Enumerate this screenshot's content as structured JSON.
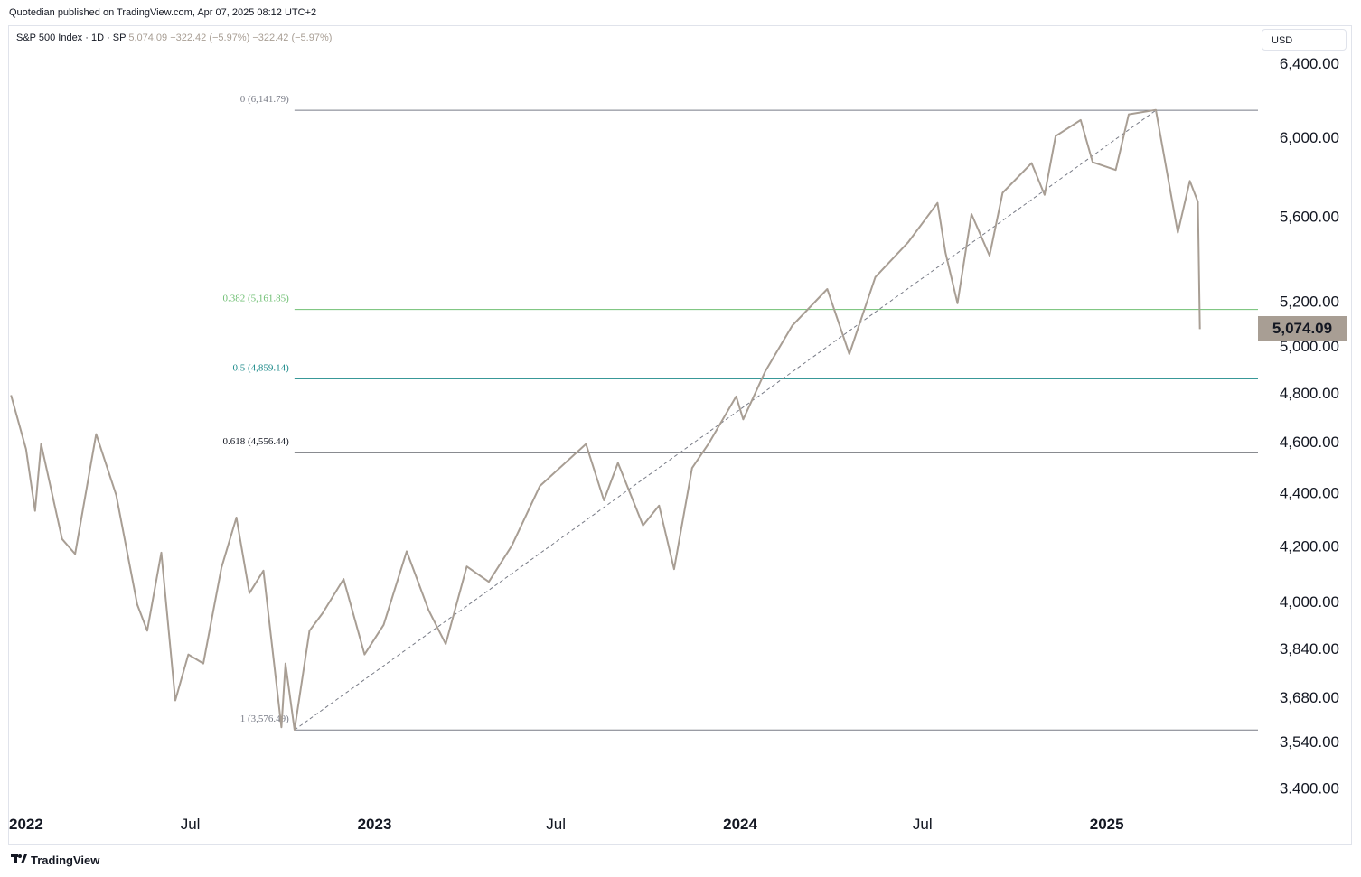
{
  "publisher_line": "Quotedian published on TradingView.com, Apr 07, 2025 08:12 UTC+2",
  "legend": {
    "symbol": "S&P 500 Index · 1D · SP",
    "values": "5,074.09 −322.42 (−5.97%) −322.42 (−5.97%)"
  },
  "currency_button": "USD",
  "last_price_label": "5,074.09",
  "brand": "TradingView",
  "colors": {
    "price_line": "#a89e94",
    "fib_0382": "#6fbf73",
    "fib_05": "#1c8a8a",
    "fib_0618": "#131722",
    "fib_edge": "#787b86"
  },
  "chart_data": {
    "type": "line",
    "title": "S&P 500 Index · 1D · SP",
    "scale": "log",
    "ylim": [
      3340,
      6450
    ],
    "x_range": [
      "2022-01-01",
      "2025-06-01"
    ],
    "y_ticks": [
      {
        "value": 6400,
        "label": "6,400.00"
      },
      {
        "value": 6000,
        "label": "6,000.00"
      },
      {
        "value": 5600,
        "label": "5,600.00"
      },
      {
        "value": 5200,
        "label": "5,200.00"
      },
      {
        "value": 5000,
        "label": "5,000.00"
      },
      {
        "value": 4800,
        "label": "4,800.00"
      },
      {
        "value": 4600,
        "label": "4,600.00"
      },
      {
        "value": 4400,
        "label": "4,400.00"
      },
      {
        "value": 4200,
        "label": "4,200.00"
      },
      {
        "value": 4000,
        "label": "4,000.00"
      },
      {
        "value": 3840,
        "label": "3,840.00"
      },
      {
        "value": 3680,
        "label": "3,680.00"
      },
      {
        "value": 3540,
        "label": "3,540.00"
      },
      {
        "value": 3400,
        "label": "3.400.00"
      }
    ],
    "x_ticks": [
      {
        "date": "2022-01-01",
        "label": "2022",
        "bold": true
      },
      {
        "date": "2022-07-01",
        "label": "Jul",
        "bold": false
      },
      {
        "date": "2023-01-01",
        "label": "2023",
        "bold": true
      },
      {
        "date": "2023-07-01",
        "label": "Jul",
        "bold": false
      },
      {
        "date": "2024-01-01",
        "label": "2024",
        "bold": true
      },
      {
        "date": "2024-07-01",
        "label": "Jul",
        "bold": false
      },
      {
        "date": "2025-01-01",
        "label": "2025",
        "bold": true
      }
    ],
    "fib_levels": [
      {
        "ratio": "0",
        "value": 6141.79,
        "label": "0 (6,141.79)",
        "color": "#787b86"
      },
      {
        "ratio": "0.382",
        "value": 5161.85,
        "label": "0.382 (5,161.85)",
        "color": "#6fbf73"
      },
      {
        "ratio": "0.5",
        "value": 4859.14,
        "label": "0.5 (4,859.14)",
        "color": "#1c8a8a"
      },
      {
        "ratio": "0.618",
        "value": 4556.44,
        "label": "0.618 (4,556.44)",
        "color": "#131722"
      },
      {
        "ratio": "1",
        "value": 3576.49,
        "label": "1 (3,576.49)",
        "color": "#787b86"
      }
    ],
    "fib_start": "2022-10-13",
    "fib_end": "2025-02-19",
    "series": [
      {
        "points": [
          [
            "2022-01-03",
            4790
          ],
          [
            "2022-01-18",
            4570
          ],
          [
            "2022-01-27",
            4330
          ],
          [
            "2022-02-02",
            4590
          ],
          [
            "2022-02-23",
            4225
          ],
          [
            "2022-03-08",
            4170
          ],
          [
            "2022-03-29",
            4630
          ],
          [
            "2022-04-18",
            4390
          ],
          [
            "2022-05-09",
            3990
          ],
          [
            "2022-05-19",
            3900
          ],
          [
            "2022-06-02",
            4175
          ],
          [
            "2022-06-16",
            3670
          ],
          [
            "2022-06-29",
            3820
          ],
          [
            "2022-07-14",
            3790
          ],
          [
            "2022-08-01",
            4120
          ],
          [
            "2022-08-16",
            4305
          ],
          [
            "2022-08-29",
            4030
          ],
          [
            "2022-09-12",
            4110
          ],
          [
            "2022-09-30",
            3585
          ],
          [
            "2022-10-04",
            3790
          ],
          [
            "2022-10-13",
            3577
          ],
          [
            "2022-10-28",
            3900
          ],
          [
            "2022-11-10",
            3960
          ],
          [
            "2022-12-01",
            4080
          ],
          [
            "2022-12-22",
            3820
          ],
          [
            "2023-01-10",
            3920
          ],
          [
            "2023-02-02",
            4180
          ],
          [
            "2023-02-24",
            3970
          ],
          [
            "2023-03-13",
            3855
          ],
          [
            "2023-04-03",
            4125
          ],
          [
            "2023-04-25",
            4070
          ],
          [
            "2023-05-18",
            4200
          ],
          [
            "2023-06-15",
            4425
          ],
          [
            "2023-07-31",
            4590
          ],
          [
            "2023-08-18",
            4370
          ],
          [
            "2023-09-01",
            4515
          ],
          [
            "2023-09-26",
            4275
          ],
          [
            "2023-10-12",
            4350
          ],
          [
            "2023-10-27",
            4115
          ],
          [
            "2023-11-14",
            4495
          ],
          [
            "2023-12-01",
            4595
          ],
          [
            "2023-12-28",
            4785
          ],
          [
            "2024-01-04",
            4690
          ],
          [
            "2024-01-26",
            4890
          ],
          [
            "2024-02-22",
            5090
          ],
          [
            "2024-03-28",
            5255
          ],
          [
            "2024-04-19",
            4965
          ],
          [
            "2024-05-15",
            5310
          ],
          [
            "2024-06-17",
            5475
          ],
          [
            "2024-07-16",
            5665
          ],
          [
            "2024-07-24",
            5425
          ],
          [
            "2024-08-05",
            5190
          ],
          [
            "2024-08-19",
            5610
          ],
          [
            "2024-09-06",
            5410
          ],
          [
            "2024-09-19",
            5715
          ],
          [
            "2024-10-18",
            5865
          ],
          [
            "2024-10-31",
            5705
          ],
          [
            "2024-11-11",
            6005
          ],
          [
            "2024-12-06",
            6090
          ],
          [
            "2024-12-18",
            5870
          ],
          [
            "2025-01-10",
            5830
          ],
          [
            "2025-01-23",
            6120
          ],
          [
            "2025-02-19",
            6144
          ],
          [
            "2025-03-13",
            5520
          ],
          [
            "2025-03-25",
            5775
          ],
          [
            "2025-04-02",
            5670
          ],
          [
            "2025-04-04",
            5074.09
          ]
        ]
      }
    ]
  }
}
